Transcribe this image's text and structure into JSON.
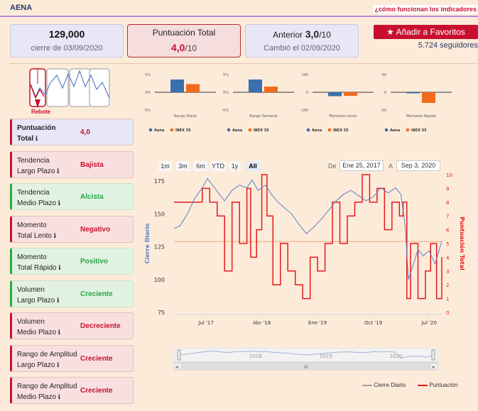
{
  "header": {
    "ticker": "AENA",
    "howto_link": "¿cómo funcionan los indicadores"
  },
  "stats": {
    "close": {
      "value": "129,000",
      "label": "cierre de 03/09/2020"
    },
    "total": {
      "label": "Puntuación Total",
      "value": "4,0",
      "max": "/10"
    },
    "previous": {
      "label": "Anterior",
      "value": "3,0",
      "max": "/10",
      "changed": "Cambió el 02/09/2020"
    }
  },
  "favorites": {
    "button_label": "Añadir a Favoritos",
    "followers": "5.724 seguidores"
  },
  "rebote": {
    "label": "Rebote",
    "icon": "rebote-pattern-icon"
  },
  "indicators": [
    {
      "label1": "Puntuación",
      "label2": "Total",
      "value": "4,0",
      "color": "red",
      "style": "blue",
      "bold": true
    },
    {
      "label1": "Tendencia",
      "label2": "Largo Plazo",
      "value": "Bajista",
      "color": "red",
      "style": "pink"
    },
    {
      "label1": "Tendencia",
      "label2": "Medio Plazo",
      "value": "Alcista",
      "color": "green",
      "style": "green"
    },
    {
      "label1": "Momento",
      "label2": "Total Lento",
      "value": "Negativo",
      "color": "red",
      "style": "pink"
    },
    {
      "label1": "Momento",
      "label2": "Total Rápido",
      "value": "Positivo",
      "color": "green",
      "style": "green"
    },
    {
      "label1": "Volumen",
      "label2": "Largo Plazo",
      "value": "Creciente",
      "color": "green",
      "style": "green"
    },
    {
      "label1": "Volumen",
      "label2": "Medio Plazo",
      "value": "Decreciente",
      "color": "red",
      "style": "pink"
    },
    {
      "label1": "Rango de Amplitud",
      "label2": "Largo Plazo",
      "value": "Creciente",
      "color": "red",
      "style": "pink"
    },
    {
      "label1": "Rango de Amplitud",
      "label2": "Medio Plazo",
      "value": "Creciente",
      "color": "red",
      "style": "pink"
    }
  ],
  "colors": {
    "aena": "#3a6fb0",
    "ibex": "#f26b1d",
    "price_line": "#5b7fc7",
    "score_line": "#e41a1c",
    "accent": "#c8102e"
  },
  "range_selector": {
    "buttons": [
      "1m",
      "3m",
      "6m",
      "YTD",
      "1y",
      "All"
    ],
    "active": "All",
    "from_label": "De",
    "from": "Ene 25, 2017",
    "to_label": "A",
    "to": "Sep 3, 2020"
  },
  "chart_data": [
    {
      "type": "bar",
      "xlabel": "Rango Diario",
      "yticks": [
        "5%",
        "0%",
        "-5%"
      ],
      "ylim": [
        -5,
        5
      ],
      "series": [
        {
          "name": "Aena",
          "values": [
            3.6
          ]
        },
        {
          "name": "IBEX 35",
          "values": [
            2.3
          ]
        }
      ]
    },
    {
      "type": "bar",
      "xlabel": "Rango Semanal",
      "yticks": [
        "5%",
        "0%",
        "-5%"
      ],
      "ylim": [
        -5,
        5
      ],
      "series": [
        {
          "name": "Aena",
          "values": [
            3.6
          ]
        },
        {
          "name": "IBEX 35",
          "values": [
            1.6
          ]
        }
      ]
    },
    {
      "type": "bar",
      "xlabel": "Momento Lento",
      "yticks": [
        "100",
        "0",
        "-100"
      ],
      "ylim": [
        -100,
        100
      ],
      "series": [
        {
          "name": "Aena",
          "values": [
            -22
          ]
        },
        {
          "name": "IBEX 35",
          "values": [
            -20
          ]
        }
      ]
    },
    {
      "type": "bar",
      "xlabel": "Momento Rápido",
      "yticks": [
        "50",
        "0",
        "-50"
      ],
      "ylim": [
        -50,
        50
      ],
      "series": [
        {
          "name": "Aena",
          "values": [
            -3
          ]
        },
        {
          "name": "IBEX 35",
          "values": [
            -30
          ]
        }
      ]
    },
    {
      "type": "line",
      "ylabel": "Cierre Diario",
      "ylabel_right": "Puntuación Total",
      "ylim": [
        75,
        180
      ],
      "yticks": [
        75,
        100,
        125,
        150,
        175
      ],
      "y2lim": [
        0,
        10
      ],
      "y2ticks": [
        0,
        1,
        2,
        3,
        4,
        5,
        6,
        7,
        8,
        9,
        10
      ],
      "xticks": [
        {
          "label": "Jul '17",
          "t": 2017.5
        },
        {
          "label": "Abr '18",
          "t": 2018.25
        },
        {
          "label": "Ene '19",
          "t": 2019.0
        },
        {
          "label": "Oct '19",
          "t": 2019.75
        },
        {
          "label": "Jul '20",
          "t": 2020.5
        }
      ],
      "xlim": [
        2017.07,
        2020.67
      ],
      "plot_line_y": 129,
      "series": [
        {
          "name": "Cierre Diario",
          "x": [
            2017.07,
            2017.15,
            2017.25,
            2017.35,
            2017.45,
            2017.52,
            2017.6,
            2017.68,
            2017.75,
            2017.85,
            2017.95,
            2018.05,
            2018.12,
            2018.2,
            2018.3,
            2018.38,
            2018.45,
            2018.55,
            2018.65,
            2018.75,
            2018.85,
            2018.95,
            2019.05,
            2019.15,
            2019.25,
            2019.35,
            2019.45,
            2019.55,
            2019.65,
            2019.75,
            2019.85,
            2019.95,
            2020.05,
            2020.12,
            2020.18,
            2020.22,
            2020.28,
            2020.35,
            2020.42,
            2020.5,
            2020.58,
            2020.67
          ],
          "y": [
            139,
            141,
            150,
            162,
            170,
            177,
            171,
            165,
            160,
            168,
            172,
            170,
            176,
            168,
            172,
            165,
            160,
            155,
            150,
            142,
            135,
            140,
            146,
            153,
            160,
            165,
            168,
            164,
            160,
            163,
            170,
            166,
            170,
            165,
            140,
            100,
            110,
            123,
            118,
            122,
            112,
            129
          ]
        },
        {
          "name": "Puntuación",
          "x": [
            2017.07,
            2017.35,
            2017.45,
            2017.55,
            2017.65,
            2017.75,
            2017.85,
            2017.95,
            2018.05,
            2018.1,
            2018.18,
            2018.25,
            2018.32,
            2018.4,
            2018.5,
            2018.6,
            2018.7,
            2018.8,
            2018.9,
            2019.0,
            2019.1,
            2019.2,
            2019.3,
            2019.4,
            2019.5,
            2019.6,
            2019.7,
            2019.8,
            2019.9,
            2020.0,
            2020.1,
            2020.15,
            2020.2,
            2020.25,
            2020.35,
            2020.45,
            2020.52,
            2020.6,
            2020.67
          ],
          "y": [
            8,
            8,
            9,
            8,
            7,
            3,
            8,
            5,
            9,
            4,
            6,
            10,
            7,
            2,
            5,
            3,
            2,
            1,
            4,
            3,
            5,
            8,
            5,
            7,
            8,
            10,
            8,
            9,
            6,
            8,
            7,
            8,
            1,
            5,
            1,
            3,
            5,
            1,
            4
          ]
        }
      ]
    }
  ],
  "navigator": {
    "labels": [
      "2018",
      "2019",
      "2020"
    ],
    "scroll_mark": "III"
  }
}
